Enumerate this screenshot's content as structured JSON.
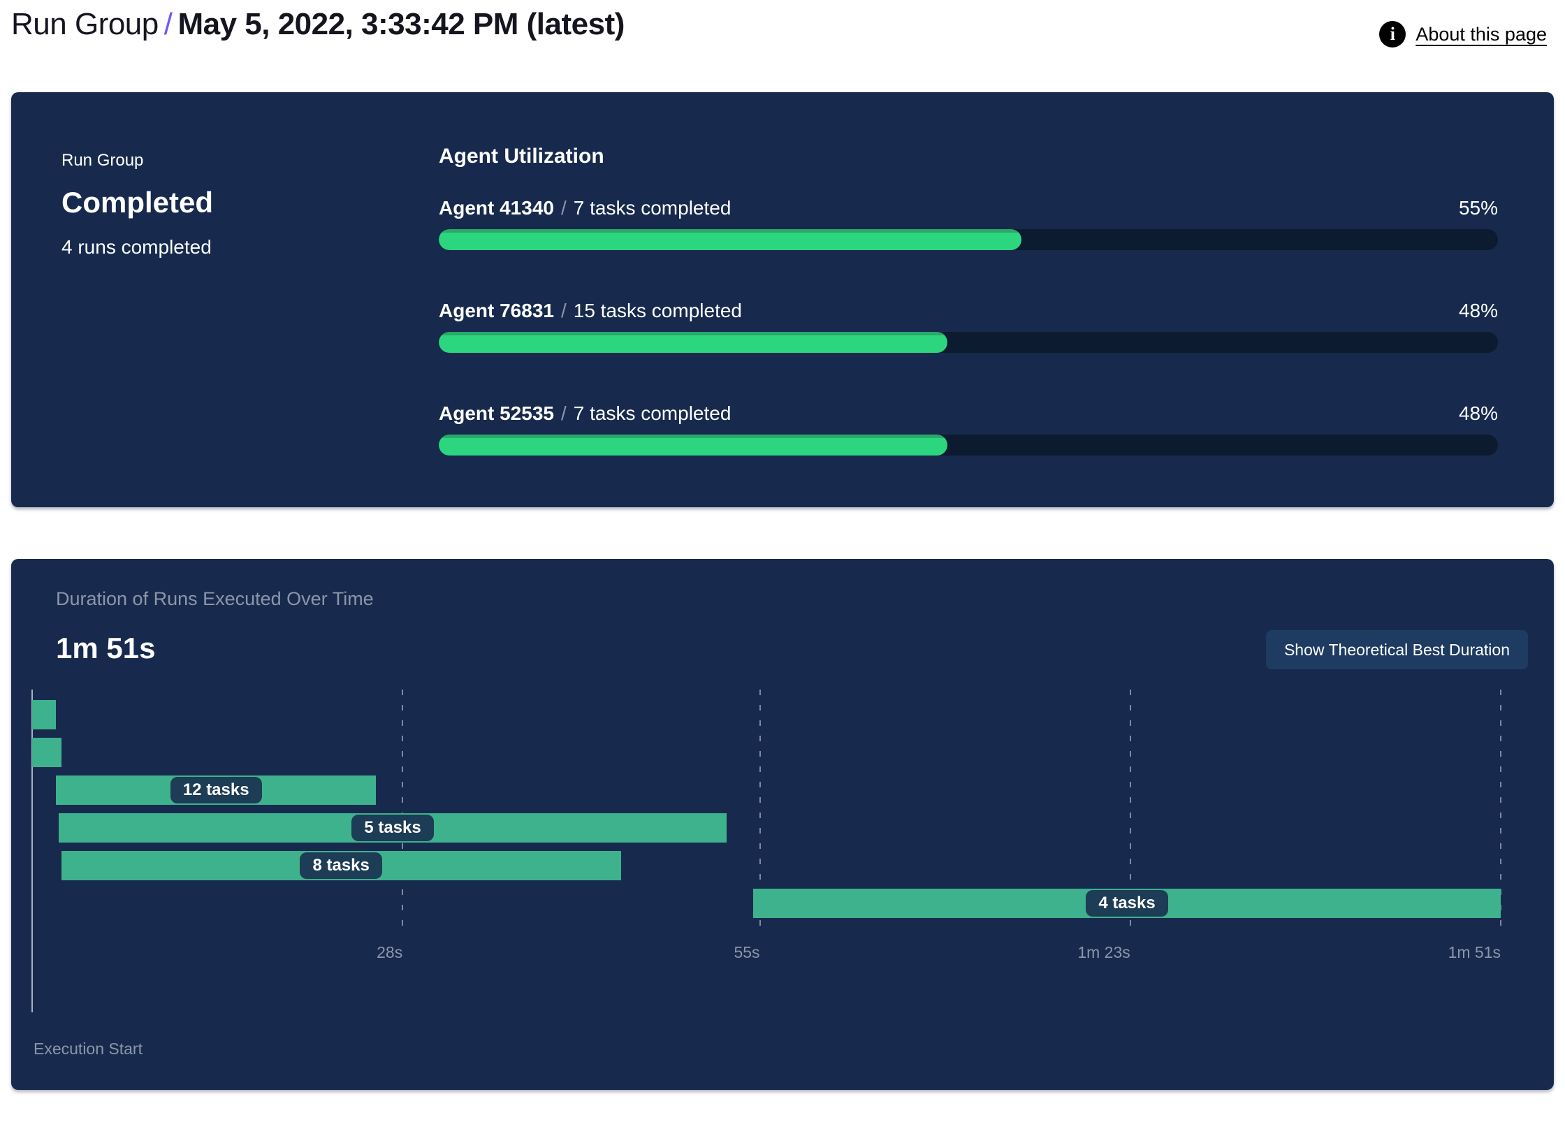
{
  "header": {
    "breadcrumb": "Run Group",
    "separator": "/",
    "title": "May 5, 2022, 3:33:42 PM (latest)",
    "about_link": "About this page",
    "info_icon_glyph": "i"
  },
  "summary_panel": {
    "group_label": "Run Group",
    "status": "Completed",
    "runs_completed": "4 runs completed",
    "utilization": {
      "heading": "Agent Utilization",
      "agents": [
        {
          "name": "Agent 41340",
          "separator": "/",
          "tasks": "7 tasks completed",
          "percent": "55%",
          "value": 55
        },
        {
          "name": "Agent 76831",
          "separator": "/",
          "tasks": "15 tasks completed",
          "percent": "48%",
          "value": 48
        },
        {
          "name": "Agent 52535",
          "separator": "/",
          "tasks": "7 tasks completed",
          "percent": "48%",
          "value": 48
        }
      ]
    }
  },
  "duration_panel": {
    "title": "Duration of Runs Executed Over Time",
    "total_duration": "1m 51s",
    "button_label": "Show Theoretical Best Duration",
    "execution_start_label": "Execution Start"
  },
  "chart_data": {
    "type": "gantt",
    "title": "Duration of Runs Executed Over Time",
    "total_label": "1m 51s",
    "total_seconds": 111,
    "xlabel": "Execution Start",
    "x_ticks": [
      {
        "seconds": 28,
        "label": "28s"
      },
      {
        "seconds": 55,
        "label": "55s"
      },
      {
        "seconds": 83,
        "label": "1m 23s"
      },
      {
        "seconds": 111,
        "label": "1m 51s"
      }
    ],
    "bars": [
      {
        "row": 1,
        "start_s": 0,
        "end_s": 1.8,
        "label": ""
      },
      {
        "row": 2,
        "start_s": 0,
        "end_s": 2.2,
        "label": ""
      },
      {
        "row": 3,
        "start_s": 1.8,
        "end_s": 26,
        "label": "12 tasks"
      },
      {
        "row": 4,
        "start_s": 2,
        "end_s": 52.5,
        "label": "5 tasks"
      },
      {
        "row": 5,
        "start_s": 2.2,
        "end_s": 44.5,
        "label": "8 tasks"
      },
      {
        "row": 6,
        "start_s": 54.5,
        "end_s": 111,
        "label": "4 tasks"
      }
    ],
    "grid": true,
    "legend": false
  },
  "colors": {
    "panel_bg": "#172A4D",
    "accent_slash": "#6E5BF5",
    "utilization_fill": "#2CD67F",
    "utilization_fill_edge": "#29A96A",
    "utilization_track": "#0C1B2F",
    "gantt_bar": "#3EB28C",
    "task_pill_bg": "#1D3C55",
    "button_bg": "#1E3B61",
    "muted_text": "#8C96A9",
    "axis_line": "#A9B1C0"
  }
}
